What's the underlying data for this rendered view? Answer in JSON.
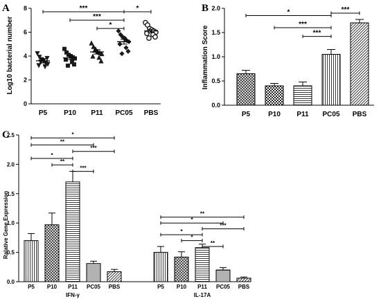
{
  "chart_data": [
    {
      "panel": "A",
      "type": "scatter",
      "ylabel": "Log10 bacterial number",
      "ylim": [
        0,
        8
      ],
      "yticks": [
        0,
        2,
        4,
        6,
        8
      ],
      "categories": [
        "P5",
        "P10",
        "P11",
        "PC05",
        "PBS"
      ],
      "marker_shapes": [
        "triangle-down",
        "square",
        "triangle-up",
        "diamond",
        "circle-open"
      ],
      "points": [
        [
          4.2,
          3.9,
          3.7,
          3.6,
          3.4,
          3.3,
          3.2,
          3.1,
          3.8,
          3.5
        ],
        [
          4.6,
          4.3,
          4.1,
          4.0,
          3.9,
          3.8,
          3.7,
          3.5,
          3.3,
          3.2
        ],
        [
          5.1,
          4.8,
          4.6,
          4.4,
          4.3,
          4.2,
          4.0,
          3.9,
          3.6,
          4.5
        ],
        [
          6.1,
          5.8,
          5.6,
          5.5,
          5.3,
          5.2,
          5.0,
          4.7,
          4.4,
          4.2
        ],
        [
          6.8,
          6.6,
          6.3,
          6.2,
          6.1,
          6.0,
          5.9,
          5.8,
          5.6,
          5.5
        ]
      ],
      "means": [
        3.6,
        3.85,
        4.35,
        5.2,
        6.1
      ],
      "sem": [
        0.18,
        0.15,
        0.18,
        0.2,
        0.14
      ],
      "significance": [
        {
          "from": "P5",
          "to": "PC05",
          "label": "***",
          "y": 8.0
        },
        {
          "from": "P10",
          "to": "PC05",
          "label": "***",
          "y": 7.3
        },
        {
          "from": "P11",
          "to": "PC05",
          "label": "*",
          "y": 6.6
        },
        {
          "from": "PC05",
          "to": "PBS",
          "label": "*",
          "y": 8.0
        }
      ]
    },
    {
      "panel": "B",
      "type": "bar",
      "ylabel": "Inflammation Score",
      "ylim": [
        0,
        2.0
      ],
      "yticks": [
        0.0,
        0.5,
        1.0,
        1.5,
        2.0
      ],
      "categories": [
        "P5",
        "P10",
        "P11",
        "PC05",
        "PBS"
      ],
      "values": [
        0.65,
        0.4,
        0.4,
        1.05,
        1.7
      ],
      "errors": [
        0.07,
        0.05,
        0.08,
        0.1,
        0.07
      ],
      "patterns": [
        "crosshatch",
        "checker",
        "hlines",
        "vlines",
        "diag"
      ],
      "significance": [
        {
          "from": "P5",
          "to": "PC05",
          "label": "*",
          "y": 1.85
        },
        {
          "from": "P10",
          "to": "PC05",
          "label": "***",
          "y": 1.6
        },
        {
          "from": "P11",
          "to": "PC05",
          "label": "***",
          "y": 1.42
        },
        {
          "from": "PC05",
          "to": "PBS",
          "label": "***",
          "y": 1.9
        }
      ]
    },
    {
      "panel": "C",
      "type": "bar",
      "ylabel": "Ralative Gene Expression",
      "ylim": [
        0,
        2.5
      ],
      "yticks": [
        0.0,
        0.5,
        1.0,
        1.5,
        2.0,
        2.5
      ],
      "groups": [
        {
          "name": "IFN-γ",
          "categories": [
            "P5",
            "P10",
            "P11",
            "PC05",
            "PBS"
          ],
          "values": [
            0.7,
            0.97,
            1.7,
            0.31,
            0.17
          ],
          "errors": [
            0.12,
            0.2,
            0.18,
            0.04,
            0.04
          ],
          "significance": [
            {
              "from": "P5",
              "to": "PBS",
              "label": "*",
              "y": 2.45
            },
            {
              "from": "P5",
              "to": "PC05",
              "label": "**",
              "y": 2.33
            },
            {
              "from": "P11",
              "to": "PBS",
              "label": "***",
              "y": 2.22
            },
            {
              "from": "P5",
              "to": "P11",
              "label": "*",
              "y": 2.1
            },
            {
              "from": "P10",
              "to": "P11",
              "label": "**",
              "y": 1.99
            },
            {
              "from": "P11",
              "to": "PC05",
              "label": "***",
              "y": 1.88
            }
          ]
        },
        {
          "name": "IL-17A",
          "categories": [
            "P5",
            "P10",
            "P11",
            "PC05",
            "PBS"
          ],
          "values": [
            0.5,
            0.42,
            0.58,
            0.2,
            0.06
          ],
          "errors": [
            0.1,
            0.09,
            0.06,
            0.04,
            0.02
          ],
          "significance": [
            {
              "from": "P5",
              "to": "PBS",
              "label": "**",
              "y": 1.1
            },
            {
              "from": "P5",
              "to": "PC05",
              "label": "*",
              "y": 1.0
            },
            {
              "from": "P11",
              "to": "PBS",
              "label": "***",
              "y": 0.9
            },
            {
              "from": "P5",
              "to": "P11",
              "label": "*",
              "y": 0.8
            },
            {
              "from": "P10",
              "to": "P11",
              "label": "*",
              "y": 0.7
            },
            {
              "from": "P11",
              "to": "PC05",
              "label": "**",
              "y": 0.6
            }
          ]
        }
      ],
      "patterns": [
        "vlines",
        "crosshatch",
        "hlines",
        "hlines-dense",
        "diag"
      ]
    }
  ],
  "panel_labels": [
    "A",
    "B",
    "C"
  ]
}
